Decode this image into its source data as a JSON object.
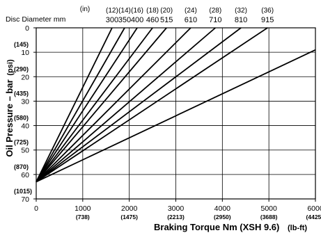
{
  "chart_data": {
    "type": "line",
    "xlabel": "Braking Torque Nm (XSH 9.6)",
    "xlabel_unit": "(lb-ft)",
    "ylabel": "Oil Pressure – bar",
    "ylabel_unit": "(psi)",
    "xlim": [
      0,
      6000
    ],
    "ylim": [
      70,
      0
    ],
    "grid": true,
    "x_ticks": [
      {
        "value": 0,
        "label": "0",
        "sub": ""
      },
      {
        "value": 1000,
        "label": "1000",
        "sub": "(738)"
      },
      {
        "value": 2000,
        "label": "2000",
        "sub": "(1475)"
      },
      {
        "value": 3000,
        "label": "3000",
        "sub": "(2213)"
      },
      {
        "value": 4000,
        "label": "4000",
        "sub": "(2950)"
      },
      {
        "value": 5000,
        "label": "5000",
        "sub": "(3688)"
      },
      {
        "value": 6000,
        "label": "6000",
        "sub": "(4425 )"
      }
    ],
    "y_ticks": [
      {
        "value": 0,
        "label": "0",
        "sub": ""
      },
      {
        "value": 10,
        "label": "10",
        "sub": "(145)"
      },
      {
        "value": 20,
        "label": "20",
        "sub": "(290)"
      },
      {
        "value": 30,
        "label": "30",
        "sub": "(435)"
      },
      {
        "value": 40,
        "label": "40",
        "sub": "(580)"
      },
      {
        "value": 50,
        "label": "50",
        "sub": "(725)"
      },
      {
        "value": 60,
        "label": "60",
        "sub": "(870)"
      },
      {
        "value": 70,
        "label": "70",
        "sub": "(1015)"
      }
    ],
    "top_axis": {
      "label_in": "(in)",
      "label_mm": "Disc Diameter mm"
    },
    "origin": {
      "x": 0,
      "y": 63
    },
    "series": [
      {
        "name": "300",
        "inch": "(12)",
        "x": [
          0,
          1630
        ],
        "y": [
          63,
          0
        ]
      },
      {
        "name": "350",
        "inch": "(14)",
        "x": [
          0,
          1900
        ],
        "y": [
          63,
          0
        ]
      },
      {
        "name": "400",
        "inch": "(16)",
        "x": [
          0,
          2170
        ],
        "y": [
          63,
          0
        ]
      },
      {
        "name": "460",
        "inch": "(18)",
        "x": [
          0,
          2500
        ],
        "y": [
          63,
          0
        ]
      },
      {
        "name": "515",
        "inch": "(20)",
        "x": [
          0,
          2800
        ],
        "y": [
          63,
          0
        ]
      },
      {
        "name": "610",
        "inch": "(24)",
        "x": [
          0,
          3320
        ],
        "y": [
          63,
          0
        ]
      },
      {
        "name": "710",
        "inch": "(28)",
        "x": [
          0,
          3850
        ],
        "y": [
          63,
          0
        ]
      },
      {
        "name": "810",
        "inch": "(32)",
        "x": [
          0,
          4400
        ],
        "y": [
          63,
          0
        ]
      },
      {
        "name": "915",
        "inch": "(36)",
        "x": [
          0,
          4970
        ],
        "y": [
          63,
          0
        ]
      },
      {
        "name": "",
        "inch": "",
        "x": [
          0,
          6000
        ],
        "y": [
          63,
          9
        ]
      }
    ]
  }
}
